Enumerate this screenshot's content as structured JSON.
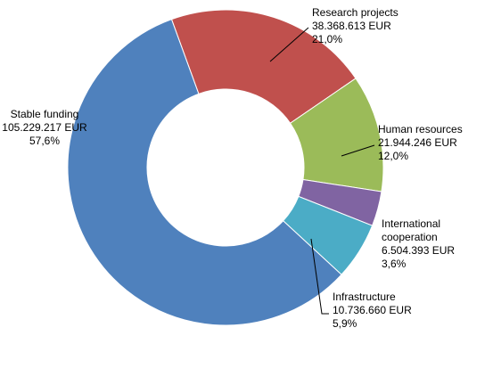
{
  "chart_data": {
    "type": "pie",
    "donut": true,
    "legend": "none",
    "slices": [
      {
        "label": "Research projects",
        "value_text": "38.368.613 EUR",
        "percent_text": "21,0%",
        "value": 38368613,
        "percent": 21.0,
        "color": "#C0504D"
      },
      {
        "label": "Human resources",
        "value_text": "21.944.246 EUR",
        "percent_text": "12,0%",
        "value": 21944246,
        "percent": 12.0,
        "color": "#9BBB59"
      },
      {
        "label": "International cooperation",
        "label_lines": [
          "International",
          "cooperation"
        ],
        "value_text": "6.504.393 EUR",
        "percent_text": "3,6%",
        "value": 6504393,
        "percent": 3.6,
        "color": "#8064A2"
      },
      {
        "label": "Infrastructure",
        "value_text": "10.736.660 EUR",
        "percent_text": "5,9%",
        "value": 10736660,
        "percent": 5.9,
        "color": "#4BACC6"
      },
      {
        "label": "Stable funding",
        "value_text": "105.229.217 EUR",
        "percent_text": "57,6%",
        "value": 105229217,
        "percent": 57.6,
        "color": "#4F81BD"
      }
    ]
  }
}
